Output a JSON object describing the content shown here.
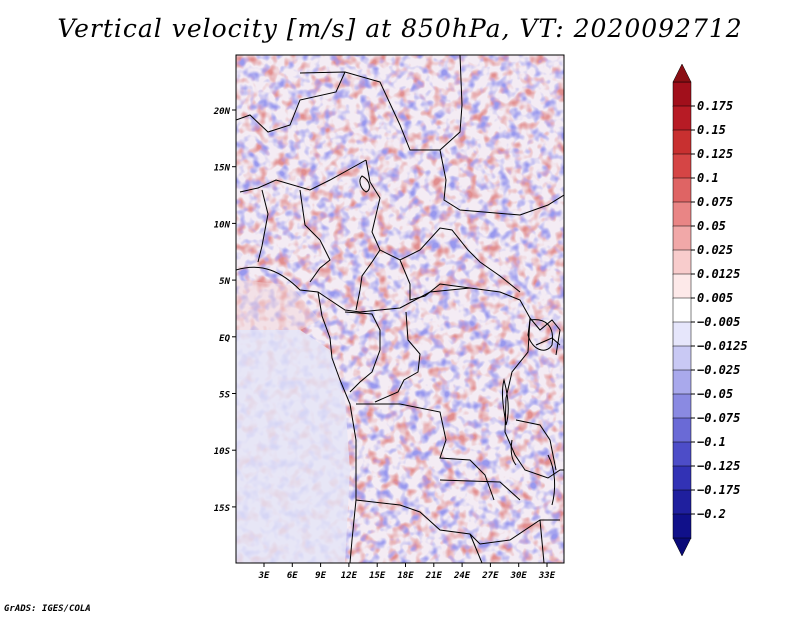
{
  "title": "Vertical velocity [m/s] at 850hPa, VT: 2020092712",
  "credit": "GrADS: IGES/COLA",
  "map": {
    "lat_labels": [
      "20N",
      "15N",
      "10N",
      "5N",
      "EQ",
      "5S",
      "10S",
      "15S"
    ],
    "lon_labels": [
      "3E",
      "6E",
      "9E",
      "12E",
      "15E",
      "18E",
      "21E",
      "24E",
      "27E",
      "30E",
      "33E"
    ]
  },
  "colorbar": {
    "levels": [
      "0.175",
      "0.15",
      "0.125",
      "0.1",
      "0.075",
      "0.05",
      "0.025",
      "0.0125",
      "0.005",
      "-0.005",
      "-0.0125",
      "-0.025",
      "-0.05",
      "-0.075",
      "-0.1",
      "-0.125",
      "-0.175",
      "-0.2"
    ],
    "colors": [
      "#a10f1b",
      "#b71b25",
      "#c83030",
      "#d54545",
      "#df6464",
      "#e98585",
      "#f1a8a8",
      "#f8cccc",
      "#fde9e9",
      "#ffffff",
      "#e6e6fb",
      "#c9c9f4",
      "#a9a9ec",
      "#8a8ae2",
      "#6a6ad6",
      "#4d4dc8",
      "#3232b5",
      "#1f1f9e",
      "#10108a"
    ]
  }
}
